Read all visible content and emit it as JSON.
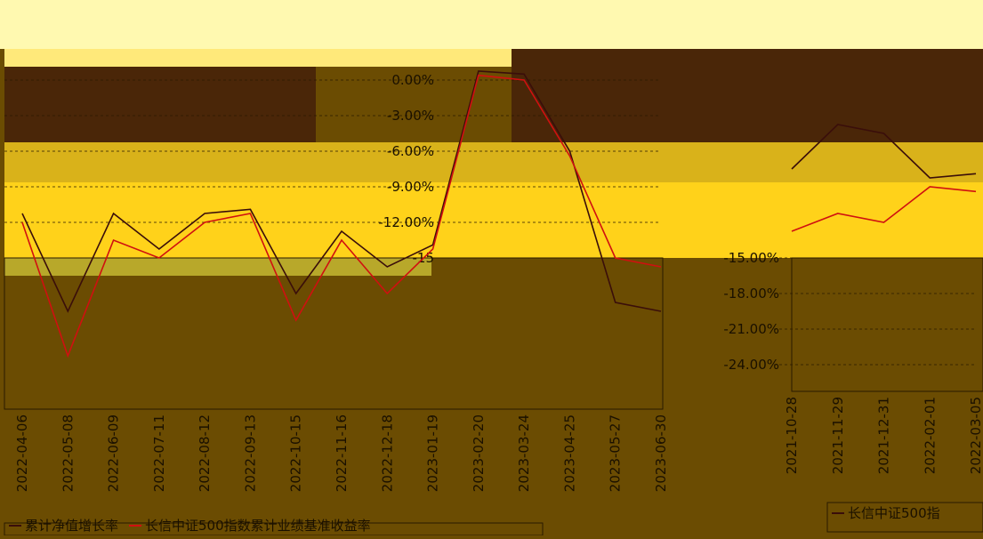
{
  "chart_data": [
    {
      "type": "line",
      "categories": [
        "2022-04-06",
        "2022-05-08",
        "2022-06-09",
        "2022-07-11",
        "2022-08-12",
        "2022-09-13",
        "2022-10-15",
        "2022-11-16",
        "2022-12-18",
        "2023-01-19",
        "2023-02-20",
        "2023-03-24",
        "2023-04-25",
        "2023-05-27",
        "2023-06-30"
      ],
      "series": [
        {
          "name": "累计净值增长率",
          "color": "#3a0e0a",
          "values": [
            -11.25,
            -19.5,
            -11.25,
            -14.25,
            -11.25,
            -10.9,
            -18,
            -12.75,
            -15.75,
            -13.9,
            0.75,
            0.5,
            -6,
            -18.75,
            -19.5
          ]
        },
        {
          "name": "长信中证500指数累计业绩基准收益率",
          "color": "#d01010",
          "values": [
            -12,
            -23.25,
            -13.5,
            -15,
            -12,
            -11.25,
            -20.25,
            -13.5,
            -18,
            -14.25,
            0.4,
            0,
            -6.4,
            -15,
            -15.75
          ]
        }
      ],
      "ylim": [
        -27.75,
        1.125
      ],
      "yticks": [
        {
          "value": 0,
          "label": "0.00%"
        },
        {
          "value": -3,
          "label": "-3.00%"
        },
        {
          "value": -6,
          "label": "-6.00%"
        },
        {
          "value": -9,
          "label": "-9.00%"
        },
        {
          "value": -12,
          "label": "-12.00%"
        },
        {
          "value": -15,
          "label": "-15"
        }
      ],
      "grid": true
    },
    {
      "type": "line",
      "categories": [
        "2021-10-28",
        "2021-11-29",
        "2021-12-31",
        "2022-02-01",
        "2022-03-05"
      ],
      "series": [
        {
          "name": "长信中证500指",
          "color": "#3a0e0a",
          "values": [
            -7.5,
            -3.75,
            -4.5,
            -8.25,
            -7.9
          ]
        },
        {
          "color": "#d01010",
          "values": [
            -12.75,
            -11.25,
            -12,
            -9,
            -9.4
          ]
        }
      ],
      "ylim": [
        -26.25,
        1.125
      ],
      "yticks": [
        {
          "value": -15,
          "label": "-15.00%"
        },
        {
          "value": -18,
          "label": "-18.00%"
        },
        {
          "value": -21,
          "label": "-21.00%"
        },
        {
          "value": -24,
          "label": "-24.00%"
        }
      ],
      "grid": true
    }
  ]
}
